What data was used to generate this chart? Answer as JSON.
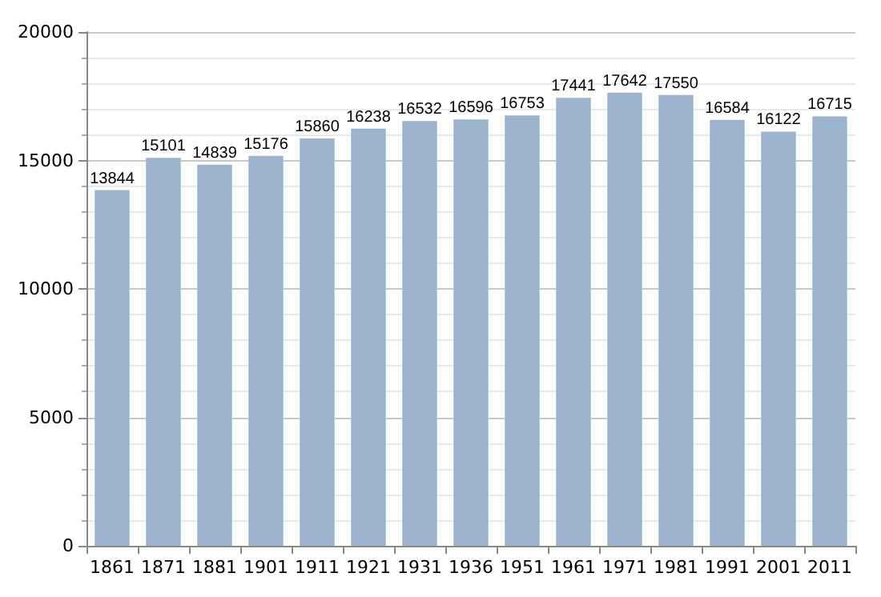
{
  "chart_data": {
    "type": "bar",
    "categories": [
      "1861",
      "1871",
      "1881",
      "1901",
      "1911",
      "1921",
      "1931",
      "1936",
      "1951",
      "1961",
      "1971",
      "1981",
      "1991",
      "2001",
      "2011"
    ],
    "values": [
      13844,
      15101,
      14839,
      15176,
      15860,
      16238,
      16532,
      16596,
      16753,
      17441,
      17642,
      17550,
      16584,
      16122,
      16715
    ],
    "color": "#9cb4ce",
    "ylim": [
      0,
      20000
    ],
    "yticks": [
      0,
      5000,
      10000,
      15000,
      20000
    ],
    "grid": "y",
    "data_labels": true
  }
}
